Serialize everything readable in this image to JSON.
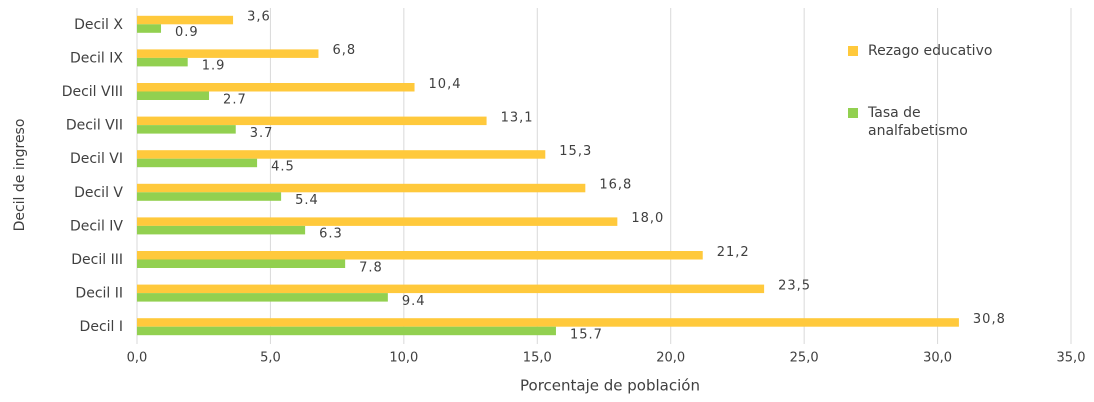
{
  "chart_data": {
    "type": "bar",
    "orientation": "horizontal",
    "categories": [
      "Decil X",
      "Decil IX",
      "Decil VIII",
      "Decil VII",
      "Decil VI",
      "Decil V",
      "Decil IV",
      "Decil III",
      "Decil II",
      "Decil I"
    ],
    "series": [
      {
        "name": "Rezago educativo",
        "color": "#ffc93c",
        "values": [
          3.6,
          6.8,
          10.4,
          13.1,
          15.3,
          16.8,
          18.0,
          21.2,
          23.5,
          30.8
        ],
        "value_labels": [
          "3,6",
          "6,8",
          "10,4",
          "13,1",
          "15,3",
          "16,8",
          "18,0",
          "21,2",
          "23,5",
          "30,8"
        ]
      },
      {
        "name": "Tasa de analfabetismo",
        "color": "#92d050",
        "values": [
          0.9,
          1.9,
          2.7,
          3.7,
          4.5,
          5.4,
          6.3,
          7.8,
          9.4,
          15.7
        ]
      }
    ],
    "xlabel": "Porcentaje de población",
    "ylabel": "Decil de ingreso",
    "xlim": [
      0,
      35
    ],
    "xticks": [
      {
        "value": 0,
        "label": "0,0"
      },
      {
        "value": 5,
        "label": "5,0"
      },
      {
        "value": 10,
        "label": "10,0"
      },
      {
        "value": 15,
        "label": "15,0"
      },
      {
        "value": 20,
        "label": "20,0"
      },
      {
        "value": 25,
        "label": "25,0"
      },
      {
        "value": 30,
        "label": "30,0"
      },
      {
        "value": 35,
        "label": "35,0"
      }
    ],
    "grid": true,
    "legend": "right"
  }
}
